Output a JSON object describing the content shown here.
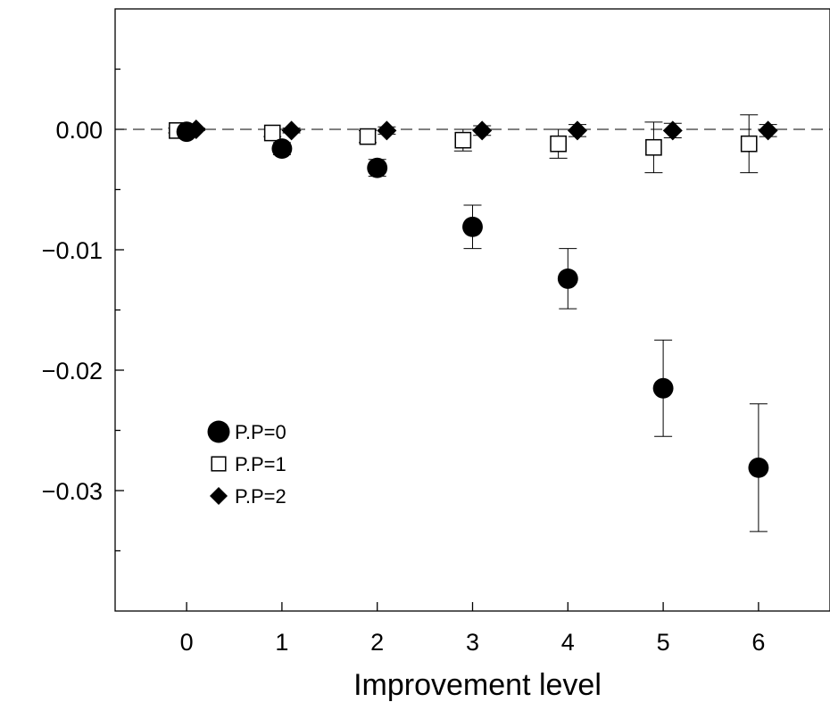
{
  "chart_data": {
    "type": "scatter",
    "xlabel": "Improvement level",
    "ylabel": "",
    "xlim": [
      -0.75,
      6.75
    ],
    "ylim": [
      -0.04,
      0.01
    ],
    "x_ticks": [
      0,
      1,
      2,
      3,
      4,
      5,
      6
    ],
    "x_tick_labels": [
      "0",
      "1",
      "2",
      "3",
      "4",
      "5",
      "6"
    ],
    "y_ticks": [
      0.0,
      -0.01,
      -0.02,
      -0.03
    ],
    "y_tick_labels": [
      "0.00",
      "−0.01",
      "−0.02",
      "−0.03"
    ],
    "y_minor_ticks": [
      0.005,
      -0.005,
      -0.015,
      -0.025,
      -0.035
    ],
    "reference_line": {
      "y": 0,
      "style": "dashed"
    },
    "grid": false,
    "legend_position": "lower-left",
    "series": [
      {
        "name": "P.P=0",
        "marker": "filled-circle",
        "x_offset": 0.0,
        "points": [
          {
            "x": 0,
            "y": -0.0002,
            "err": 0.0003
          },
          {
            "x": 1,
            "y": -0.0016,
            "err": 0.0005
          },
          {
            "x": 2,
            "y": -0.0032,
            "err": 0.0007
          },
          {
            "x": 3,
            "y": -0.0081,
            "err": 0.0018
          },
          {
            "x": 4,
            "y": -0.0124,
            "err": 0.0025
          },
          {
            "x": 5,
            "y": -0.0215,
            "err": 0.004
          },
          {
            "x": 6,
            "y": -0.0281,
            "err": 0.0053
          }
        ]
      },
      {
        "name": "P.P=1",
        "marker": "open-square",
        "x_offset": -0.1,
        "points": [
          {
            "x": 0,
            "y": -0.0001,
            "err": 0.0002
          },
          {
            "x": 1,
            "y": -0.0003,
            "err": 0.0003
          },
          {
            "x": 2,
            "y": -0.0006,
            "err": 0.0005
          },
          {
            "x": 3,
            "y": -0.0009,
            "err": 0.0009
          },
          {
            "x": 4,
            "y": -0.0012,
            "err": 0.0012
          },
          {
            "x": 5,
            "y": -0.0015,
            "err": 0.0021
          },
          {
            "x": 6,
            "y": -0.0012,
            "err": 0.0024
          }
        ]
      },
      {
        "name": "P.P=2",
        "marker": "filled-diamond",
        "x_offset": 0.1,
        "points": [
          {
            "x": 0,
            "y": 0.0,
            "err": 0.0001
          },
          {
            "x": 1,
            "y": -0.0001,
            "err": 0.0002
          },
          {
            "x": 2,
            "y": -0.0001,
            "err": 0.0003
          },
          {
            "x": 3,
            "y": -0.0001,
            "err": 0.0004
          },
          {
            "x": 4,
            "y": -0.0001,
            "err": 0.0005
          },
          {
            "x": 5,
            "y": -0.0001,
            "err": 0.0006
          },
          {
            "x": 6,
            "y": -0.0001,
            "err": 0.0005
          }
        ]
      }
    ]
  }
}
